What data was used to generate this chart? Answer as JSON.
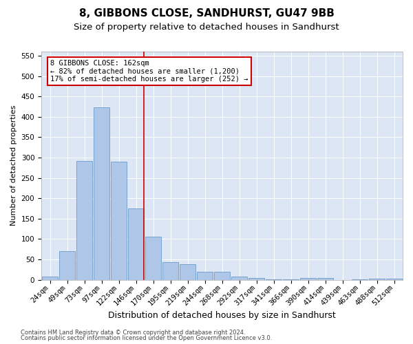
{
  "title": "8, GIBBONS CLOSE, SANDHURST, GU47 9BB",
  "subtitle": "Size of property relative to detached houses in Sandhurst",
  "xlabel": "Distribution of detached houses by size in Sandhurst",
  "ylabel": "Number of detached properties",
  "categories": [
    "24sqm",
    "49sqm",
    "73sqm",
    "97sqm",
    "122sqm",
    "146sqm",
    "170sqm",
    "195sqm",
    "219sqm",
    "244sqm",
    "268sqm",
    "292sqm",
    "317sqm",
    "341sqm",
    "366sqm",
    "390sqm",
    "414sqm",
    "439sqm",
    "463sqm",
    "488sqm",
    "512sqm"
  ],
  "values": [
    8,
    70,
    292,
    423,
    290,
    175,
    105,
    43,
    38,
    20,
    20,
    8,
    4,
    1,
    1,
    5,
    5,
    0,
    1,
    3,
    3
  ],
  "bar_color": "#aec6e8",
  "bar_edge_color": "#5a8fc0",
  "property_line_color": "#cc0000",
  "annotation_text": "8 GIBBONS CLOSE: 162sqm\n← 82% of detached houses are smaller (1,200)\n17% of semi-detached houses are larger (252) →",
  "annotation_box_color": "#cc0000",
  "ylim": [
    0,
    560
  ],
  "yticks": [
    0,
    50,
    100,
    150,
    200,
    250,
    300,
    350,
    400,
    450,
    500,
    550
  ],
  "plot_bg_color": "#dce6f5",
  "footer1": "Contains HM Land Registry data © Crown copyright and database right 2024.",
  "footer2": "Contains public sector information licensed under the Open Government Licence v3.0.",
  "title_fontsize": 11,
  "subtitle_fontsize": 9.5,
  "xlabel_fontsize": 9,
  "ylabel_fontsize": 8,
  "tick_fontsize": 7.5,
  "annotation_fontsize": 7.5
}
